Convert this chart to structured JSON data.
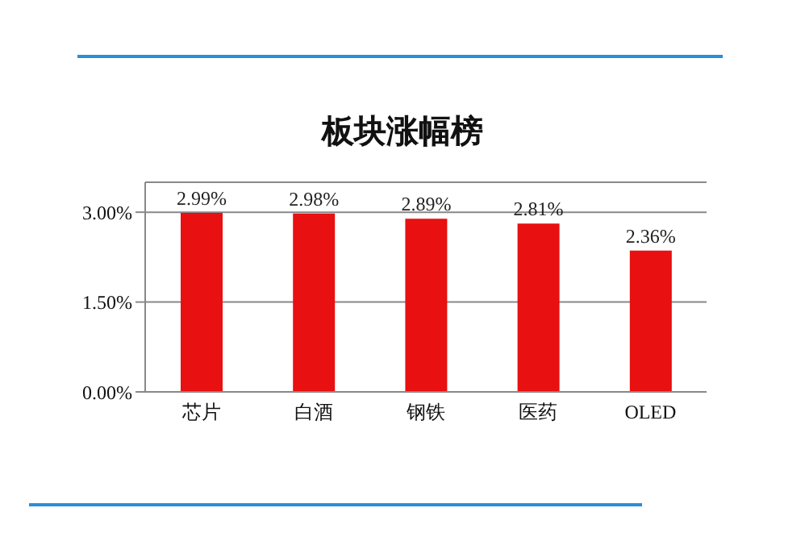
{
  "chart_data": {
    "type": "bar",
    "title": "板块涨幅榜",
    "categories": [
      "芯片",
      "白酒",
      "钢铁",
      "医药",
      "OLED"
    ],
    "values": [
      2.99,
      2.98,
      2.89,
      2.81,
      2.36
    ],
    "value_labels": [
      "2.99%",
      "2.98%",
      "2.89%",
      "2.81%",
      "2.36%"
    ],
    "color": "#e81010",
    "ylim": [
      0,
      3.5
    ],
    "yticks": [
      {
        "value": 0,
        "label": "0.00%"
      },
      {
        "value": 1.5,
        "label": "1.50%"
      },
      {
        "value": 3,
        "label": "3.00%"
      }
    ],
    "grid": "y"
  }
}
